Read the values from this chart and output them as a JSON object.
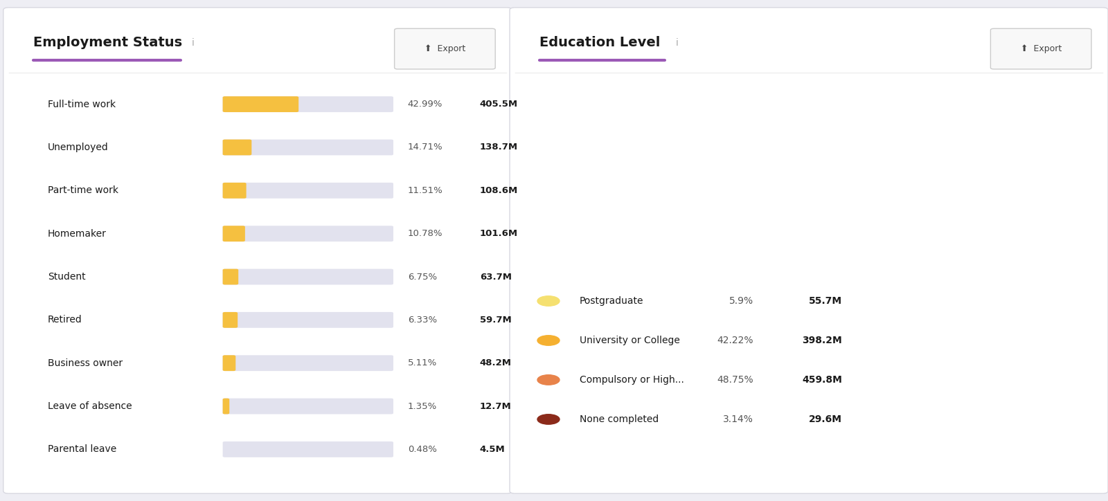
{
  "employment": {
    "title": "Employment Status",
    "info_icon": "i",
    "categories": [
      "Full-time work",
      "Unemployed",
      "Part-time work",
      "Homemaker",
      "Student",
      "Retired",
      "Business owner",
      "Leave of absence",
      "Parental leave"
    ],
    "percentages": [
      42.99,
      14.71,
      11.51,
      10.78,
      6.75,
      6.33,
      5.11,
      1.35,
      0.48
    ],
    "values": [
      "405.5M",
      "138.7M",
      "108.6M",
      "101.6M",
      "63.7M",
      "59.7M",
      "48.2M",
      "12.7M",
      "4.5M"
    ],
    "bar_color": "#F5C040",
    "bar_bg_color": "#E2E2EE"
  },
  "education": {
    "title": "Education Level",
    "info_icon": "i",
    "categories": [
      "Postgraduate",
      "University or College",
      "Compulsory or High...",
      "None completed"
    ],
    "percentages": [
      5.9,
      42.22,
      48.75,
      3.14
    ],
    "values": [
      "55.7M",
      "398.2M",
      "459.8M",
      "29.6M"
    ],
    "colors": [
      "#F5E070",
      "#F5B030",
      "#E8834A",
      "#8B2A1A"
    ],
    "pct_strs": [
      "5.9%",
      "42.22%",
      "48.75%",
      "3.14%"
    ]
  },
  "bg_color": "#EEEEF4",
  "panel_color": "#FFFFFF",
  "title_underline_color": "#9B59B6",
  "text_color": "#1A1A1A",
  "gray_color": "#888888",
  "pct_color": "#555555",
  "export_btn_bg": "#F5F5F5",
  "export_btn_border": "#CCCCCC",
  "divider_color": "#EEEEEE"
}
